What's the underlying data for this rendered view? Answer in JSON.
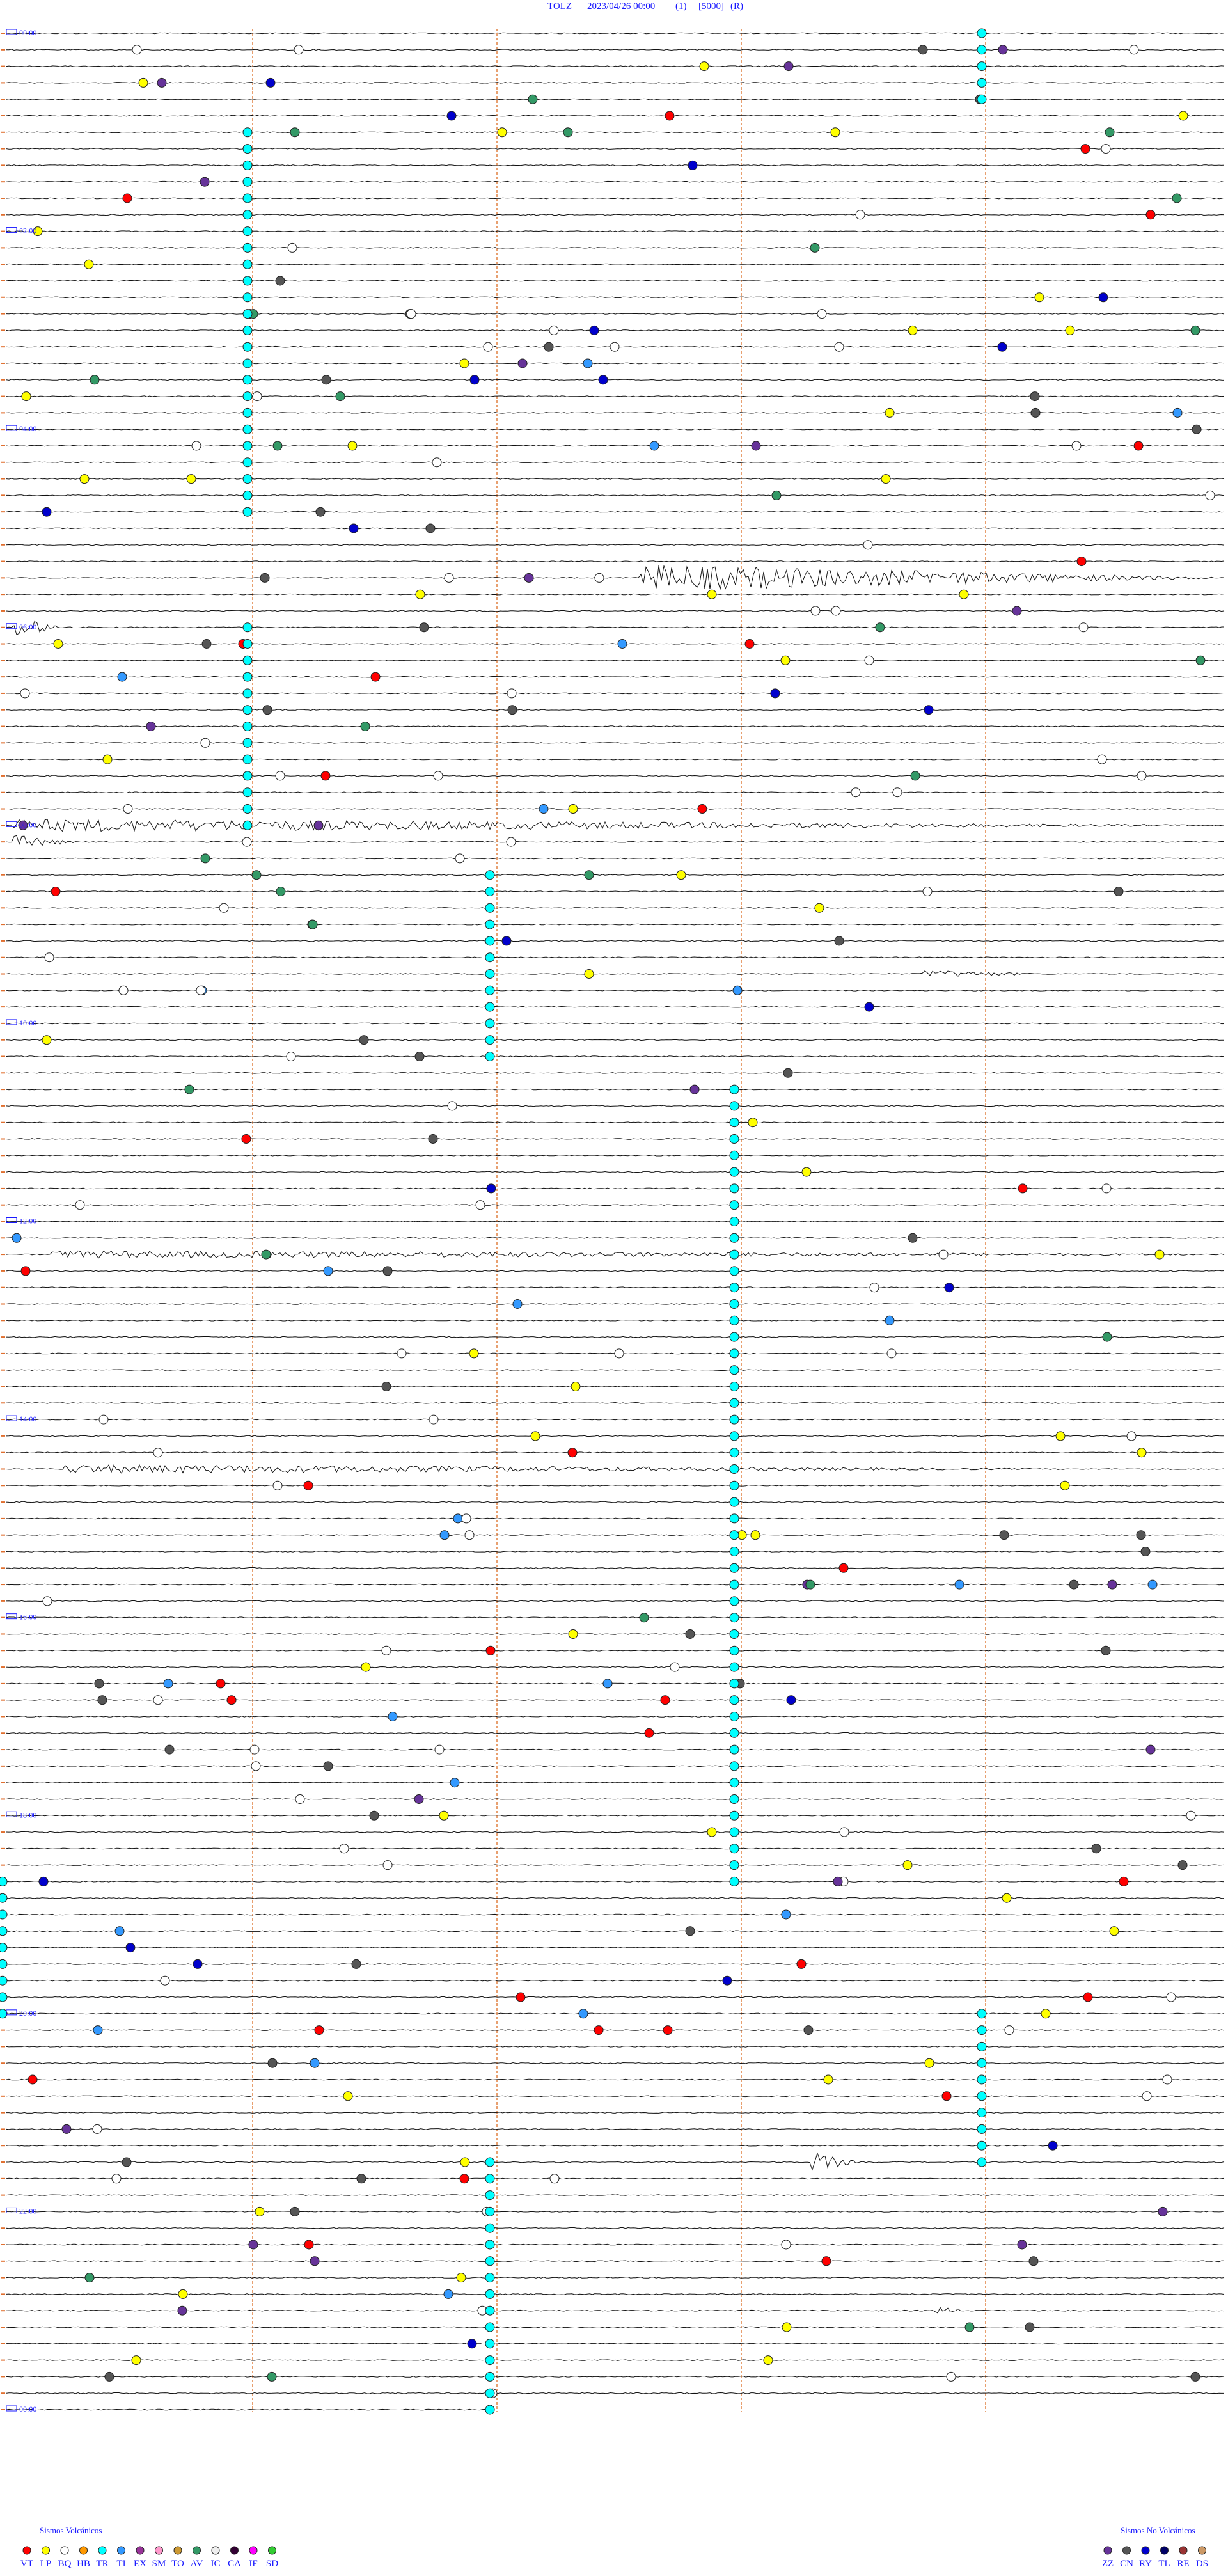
{
  "header": {
    "station": "TOLZ",
    "date": "2023/04/26 00:00",
    "field1": "(1)",
    "field2": "[5000]",
    "field3": "(R)"
  },
  "time_labels": [
    "00:00",
    "02:00",
    "04:00",
    "06:00",
    "08:00",
    "10:00",
    "12:00",
    "14:00",
    "16:00",
    "18:00",
    "20:00",
    "22:00",
    "00:00"
  ],
  "legend": {
    "volcanic": {
      "title": "Sismos Volcánicos",
      "items": [
        {
          "code": "VT",
          "color": "#ff0000"
        },
        {
          "code": "LP",
          "color": "#ffff00"
        },
        {
          "code": "BQ",
          "color": "#ffffff"
        },
        {
          "code": "HB",
          "color": "#ff9900"
        },
        {
          "code": "TR",
          "color": "#00ffff"
        },
        {
          "code": "TI",
          "color": "#3399ff"
        },
        {
          "code": "EX",
          "color": "#993399"
        },
        {
          "code": "SM",
          "color": "#ff99cc"
        },
        {
          "code": "TO",
          "color": "#cc9933"
        },
        {
          "code": "AV",
          "color": "#339966"
        },
        {
          "code": "IC",
          "color": "#eeeeee"
        },
        {
          "code": "CA",
          "color": "#330033"
        },
        {
          "code": "IF",
          "color": "#ff00ff"
        },
        {
          "code": "SD",
          "color": "#33cc33"
        }
      ]
    },
    "nonvolcanic": {
      "title": "Sismos No Volcánicos",
      "items": [
        {
          "code": "ZZ",
          "color": "#663399"
        },
        {
          "code": "CN",
          "color": "#555555"
        },
        {
          "code": "RY",
          "color": "#0000cc"
        },
        {
          "code": "TL",
          "color": "#000066"
        },
        {
          "code": "RE",
          "color": "#993333"
        },
        {
          "code": "DS",
          "color": "#cc9966"
        }
      ]
    }
  }
}
